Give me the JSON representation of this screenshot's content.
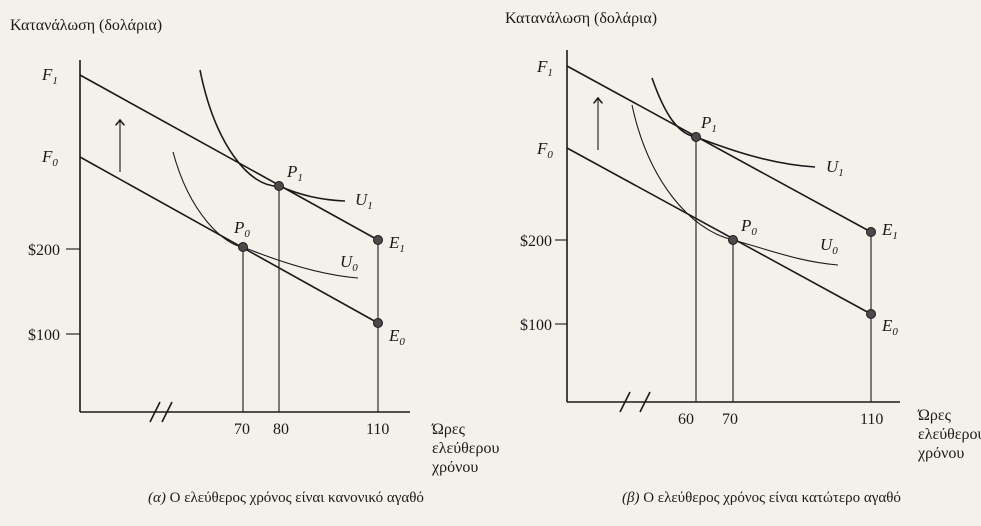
{
  "panel_a": {
    "y_title": "Κατανάλωση (δολάρια)",
    "y_labels": {
      "f1": "F",
      "f1_sub": "1",
      "f0": "F",
      "f0_sub": "0",
      "d200": "$200",
      "d100": "$100"
    },
    "x_ticks": [
      "70",
      "80",
      "110"
    ],
    "x_title": [
      "Ώρες",
      "ελεύθερου",
      "χρόνου"
    ],
    "points": {
      "p1": "P",
      "p1_sub": "1",
      "p0": "P",
      "p0_sub": "0",
      "e1": "E",
      "e1_sub": "1",
      "e0": "E",
      "e0_sub": "0"
    },
    "curves": {
      "u1": "U",
      "u1_sub": "1",
      "u0": "U",
      "u0_sub": "0"
    },
    "caption_greek": "(α)",
    "caption": "Ο ελεύθερος χρόνος είναι κανονικό αγαθό"
  },
  "panel_b": {
    "y_title": "Κατανάλωση (δολάρια)",
    "y_labels": {
      "f1": "F",
      "f1_sub": "1",
      "f0": "F",
      "f0_sub": "0",
      "d200": "$200",
      "d100": "$100"
    },
    "x_ticks": [
      "60",
      "70",
      "110"
    ],
    "x_title": [
      "Ώρες",
      "ελεύθερου",
      "χρόνου"
    ],
    "points": {
      "p1": "P",
      "p1_sub": "1",
      "p0": "P",
      "p0_sub": "0",
      "e1": "E",
      "e1_sub": "1",
      "e0": "E",
      "e0_sub": "0"
    },
    "curves": {
      "u1": "U",
      "u1_sub": "1",
      "u0": "U",
      "u0_sub": "0"
    },
    "caption_greek": "(β)",
    "caption": "Ο ελεύθερος χρόνος είναι κατώτερο αγαθό"
  }
}
